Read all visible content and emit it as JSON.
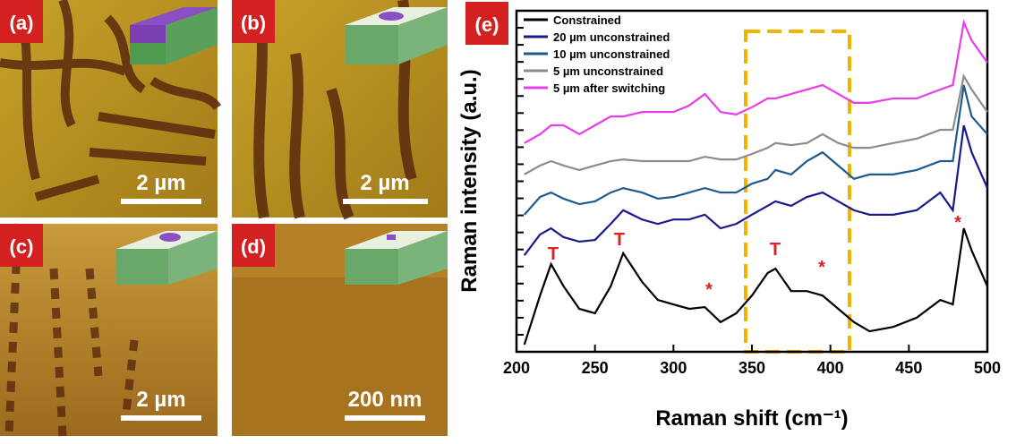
{
  "panels": [
    {
      "label": "(a)",
      "scale_bar": "2 µm"
    },
    {
      "label": "(b)",
      "scale_bar": "2 µm"
    },
    {
      "label": "(c)",
      "scale_bar": "2 µm"
    },
    {
      "label": "(d)",
      "scale_bar": "200 nm"
    }
  ],
  "chart_data": {
    "type": "line",
    "panel_label": "(e)",
    "x_label": "Raman shift (cm⁻¹)",
    "y_label": "Raman intensity (a.u.)",
    "xlim": [
      200,
      500
    ],
    "xticks": [
      200,
      250,
      300,
      350,
      400,
      450,
      500
    ],
    "ylim": [
      0,
      100
    ],
    "legend": "upper left",
    "x": [
      205,
      215,
      222,
      230,
      240,
      250,
      260,
      268,
      280,
      290,
      300,
      310,
      320,
      330,
      340,
      350,
      360,
      365,
      375,
      385,
      395,
      405,
      415,
      425,
      440,
      455,
      470,
      478,
      485,
      490,
      500
    ],
    "series": [
      {
        "name": "Constrained",
        "color": "#000000",
        "values": [
          2.1,
          16.5,
          25.7,
          19.2,
          12.6,
          11.3,
          19.2,
          28.9,
          20.5,
          15.2,
          13.9,
          12.6,
          13.1,
          8.7,
          11.3,
          16.5,
          23.1,
          24.4,
          17.8,
          17.8,
          16.5,
          12.6,
          8.7,
          6.0,
          7.3,
          10.0,
          15.2,
          13.9,
          36.2,
          29.7,
          19.2
        ]
      },
      {
        "name": "20 µm unconstrained",
        "color": "#1a1a8c",
        "values": [
          28.3,
          34.4,
          36.2,
          33.6,
          32.3,
          32.8,
          37.5,
          41.5,
          38.8,
          37.5,
          38.8,
          38.8,
          40.2,
          36.2,
          37.5,
          40.2,
          42.8,
          44.1,
          42.8,
          45.4,
          46.7,
          44.1,
          41.5,
          40.2,
          40.2,
          41.5,
          46.7,
          41.5,
          66.4,
          58.5,
          48.0
        ]
      },
      {
        "name": "10 µm unconstrained",
        "color": "#1f5a8c",
        "values": [
          40.2,
          45.4,
          46.7,
          44.9,
          43.3,
          44.1,
          46.7,
          48.0,
          46.7,
          44.9,
          45.4,
          46.7,
          48.0,
          46.7,
          46.7,
          49.3,
          50.7,
          53.3,
          52.0,
          55.9,
          58.5,
          54.6,
          50.7,
          52.0,
          52.0,
          53.3,
          55.9,
          55.9,
          78.2,
          69.0,
          63.8
        ]
      },
      {
        "name": "5 µm unconstrained",
        "color": "#8c8c8c",
        "values": [
          52.0,
          54.6,
          55.9,
          54.6,
          53.3,
          54.6,
          55.9,
          56.4,
          55.9,
          55.9,
          55.9,
          55.9,
          57.2,
          56.4,
          56.4,
          58.0,
          59.8,
          61.2,
          60.6,
          61.2,
          63.8,
          61.2,
          59.8,
          59.8,
          61.2,
          62.5,
          65.1,
          65.1,
          80.8,
          76.9,
          70.3
        ]
      },
      {
        "name": "5 µm after switching",
        "color": "#e83ce8",
        "values": [
          61.2,
          63.8,
          66.4,
          66.4,
          63.8,
          66.4,
          69.0,
          69.0,
          70.3,
          70.3,
          70.3,
          72.2,
          75.6,
          70.3,
          69.6,
          71.7,
          74.3,
          74.3,
          75.6,
          76.9,
          78.2,
          75.6,
          73.0,
          73.0,
          74.3,
          74.3,
          76.9,
          78.2,
          96.6,
          91.3,
          84.8
        ]
      }
    ],
    "annotations": [
      "T",
      "T",
      "*",
      "T",
      "*",
      "*"
    ]
  }
}
